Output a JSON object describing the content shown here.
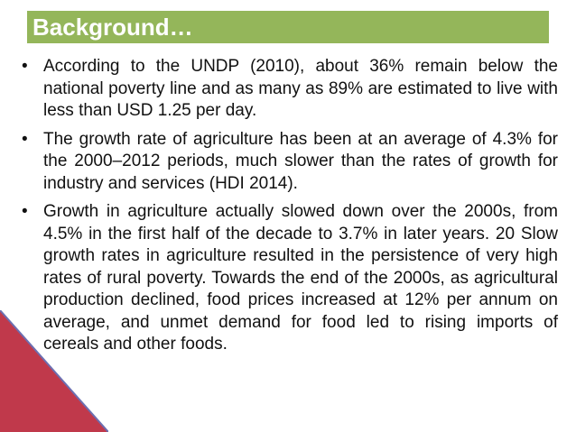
{
  "slide": {
    "title": "Background…",
    "colors": {
      "title_bar": "#94B65A",
      "title_text": "#ffffff",
      "corner_red": "#C0394B",
      "corner_blue": "#6C6FB1"
    },
    "bullet_glyph": "•",
    "bullets": [
      "According to the UNDP (2010), about 36% remain below the national poverty line and as many as 89% are estimated to live with less than USD 1.25 per day.",
      "The growth rate of agriculture has been at an average of 4.3% for the 2000–2012 periods, much slower than the rates of growth for industry and services (HDI 2014).",
      "Growth in agriculture actually slowed down over the 2000s, from 4.5% in the first half of the decade to 3.7% in later years. 20 Slow growth rates in agriculture resulted in the persistence of very high rates of rural poverty. Towards the end of the 2000s, as agricultural production declined, food prices increased at 12% per annum on average, and unmet demand for food led to rising imports of cereals and other foods."
    ]
  }
}
